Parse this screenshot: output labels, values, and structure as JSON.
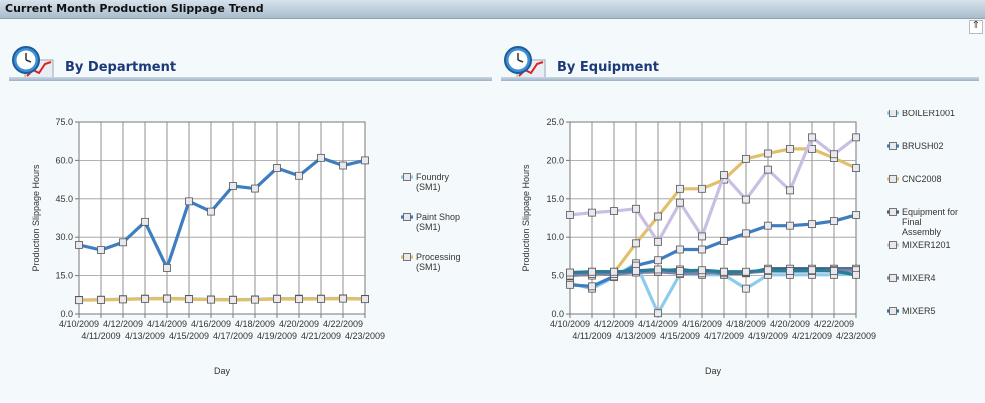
{
  "window": {
    "title": "Current Month Production Slippage Trend",
    "collapse_glyph": "⇑"
  },
  "panels": [
    {
      "title": "By Department",
      "icon": "clock-chart-icon"
    },
    {
      "title": "By Equipment",
      "icon": "clock-chart-icon"
    }
  ],
  "chart_data": [
    {
      "type": "line",
      "title": "By Department",
      "xlabel": "Day",
      "ylabel": "Production Slippage Hours",
      "ylim": [
        0,
        75
      ],
      "yticks": [
        "0.0",
        "15.0",
        "30.0",
        "45.0",
        "60.0",
        "75.0"
      ],
      "grid": true,
      "legend": "right",
      "categories": [
        "4/10/2009",
        "4/11/2009",
        "4/12/2009",
        "4/13/2009",
        "4/14/2009",
        "4/15/2009",
        "4/16/2009",
        "4/17/2009",
        "4/18/2009",
        "4/19/2009",
        "4/20/2009",
        "4/21/2009",
        "4/22/2009",
        "4/23/2009"
      ],
      "series": [
        {
          "name": "Foundry (SM1)",
          "color": "#8ccbeb",
          "values": [
            5.5,
            5.6,
            5.8,
            6.0,
            6.1,
            5.9,
            5.7,
            5.6,
            5.7,
            6.0,
            6.0,
            6.0,
            6.1,
            5.9
          ]
        },
        {
          "name": "Paint Shop (SM1)",
          "color": "#3d7dc0",
          "values": [
            27,
            25,
            28,
            36,
            18,
            44,
            40,
            50,
            49,
            57,
            54,
            61,
            58,
            60
          ]
        },
        {
          "name": "Processing (SM1)",
          "color": "#e2bf6b",
          "values": [
            5.4,
            5.5,
            5.7,
            5.9,
            6.0,
            5.8,
            5.6,
            5.5,
            5.6,
            5.9,
            5.8,
            5.9,
            6.0,
            5.8
          ]
        }
      ]
    },
    {
      "type": "line",
      "title": "By Equipment",
      "xlabel": "Day",
      "ylabel": "Production Slippage Hours",
      "ylim": [
        0,
        25
      ],
      "yticks": [
        "0.0",
        "5.0",
        "10.0",
        "15.0",
        "20.0",
        "25.0"
      ],
      "grid": true,
      "legend": "right",
      "categories": [
        "4/10/2009",
        "4/11/2009",
        "4/12/2009",
        "4/13/2009",
        "4/14/2009",
        "4/15/2009",
        "4/16/2009",
        "4/17/2009",
        "4/18/2009",
        "4/19/2009",
        "4/20/2009",
        "4/21/2009",
        "4/22/2009",
        "4/23/2009"
      ],
      "series": [
        {
          "name": "BOILER1001",
          "color": "#8ccbeb",
          "values": [
            4.0,
            3.3,
            4.8,
            6.6,
            0.1,
            5.2,
            5.1,
            5.1,
            3.3,
            5.1,
            5.1,
            5.1,
            5.1,
            5.2
          ]
        },
        {
          "name": "BRUSH02",
          "color": "#3d7dc0",
          "values": [
            3.8,
            3.6,
            4.9,
            6.3,
            7.0,
            8.4,
            8.4,
            9.5,
            10.5,
            11.5,
            11.5,
            11.7,
            12.1,
            12.9
          ]
        },
        {
          "name": "CNC2008",
          "color": "#e2bf6b",
          "values": [
            5.2,
            5.0,
            5.4,
            9.2,
            12.7,
            16.3,
            16.3,
            17.5,
            20.2,
            20.9,
            21.5,
            21.5,
            20.3,
            19.0
          ]
        },
        {
          "name": "Equipment for Final Assembly",
          "color": "#3f5f80",
          "values": [
            5.3,
            5.5,
            5.5,
            5.5,
            5.6,
            5.8,
            5.5,
            5.3,
            5.3,
            5.9,
            5.9,
            5.9,
            5.9,
            5.9
          ]
        },
        {
          "name": "MIXER1201",
          "color": "#c9bee4",
          "values": [
            12.9,
            13.2,
            13.4,
            13.7,
            9.4,
            14.5,
            10.1,
            18.1,
            14.9,
            18.8,
            16.1,
            23.0,
            20.8,
            23.0
          ]
        },
        {
          "name": "MIXER4",
          "color": "#7a82a8",
          "values": [
            5.0,
            5.2,
            5.2,
            5.4,
            5.5,
            5.3,
            5.3,
            5.5,
            5.4,
            5.6,
            5.6,
            5.6,
            5.7,
            5.7
          ]
        },
        {
          "name": "MIXER5",
          "color": "#2b7c96",
          "values": [
            5.4,
            5.5,
            5.5,
            5.6,
            5.8,
            5.6,
            5.7,
            5.5,
            5.5,
            5.7,
            5.6,
            5.7,
            5.6,
            5.1
          ]
        }
      ]
    }
  ]
}
